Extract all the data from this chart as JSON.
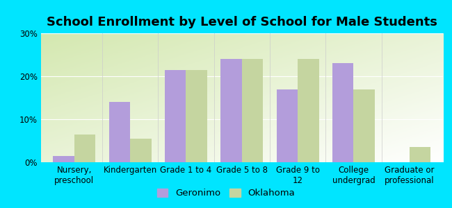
{
  "title": "School Enrollment by Level of School for Male Students",
  "categories": [
    "Nursery,\npreschool",
    "Kindergarten",
    "Grade 1 to 4",
    "Grade 5 to 8",
    "Grade 9 to\n12",
    "College\nundergrad",
    "Graduate or\nprofessional"
  ],
  "geronimo": [
    1.5,
    14.0,
    21.5,
    24.0,
    17.0,
    23.0,
    0.0
  ],
  "oklahoma": [
    6.5,
    5.5,
    21.5,
    24.0,
    24.0,
    17.0,
    3.5
  ],
  "geronimo_color": "#b39ddb",
  "oklahoma_color": "#c5d5a0",
  "background_color": "#00e5ff",
  "ylim": [
    0,
    30
  ],
  "yticks": [
    0,
    10,
    20,
    30
  ],
  "ytick_labels": [
    "0%",
    "10%",
    "20%",
    "30%"
  ],
  "legend_geronimo": "Geronimo",
  "legend_oklahoma": "Oklahoma",
  "title_fontsize": 13,
  "tick_fontsize": 8.5,
  "legend_fontsize": 9.5,
  "bar_width": 0.38
}
